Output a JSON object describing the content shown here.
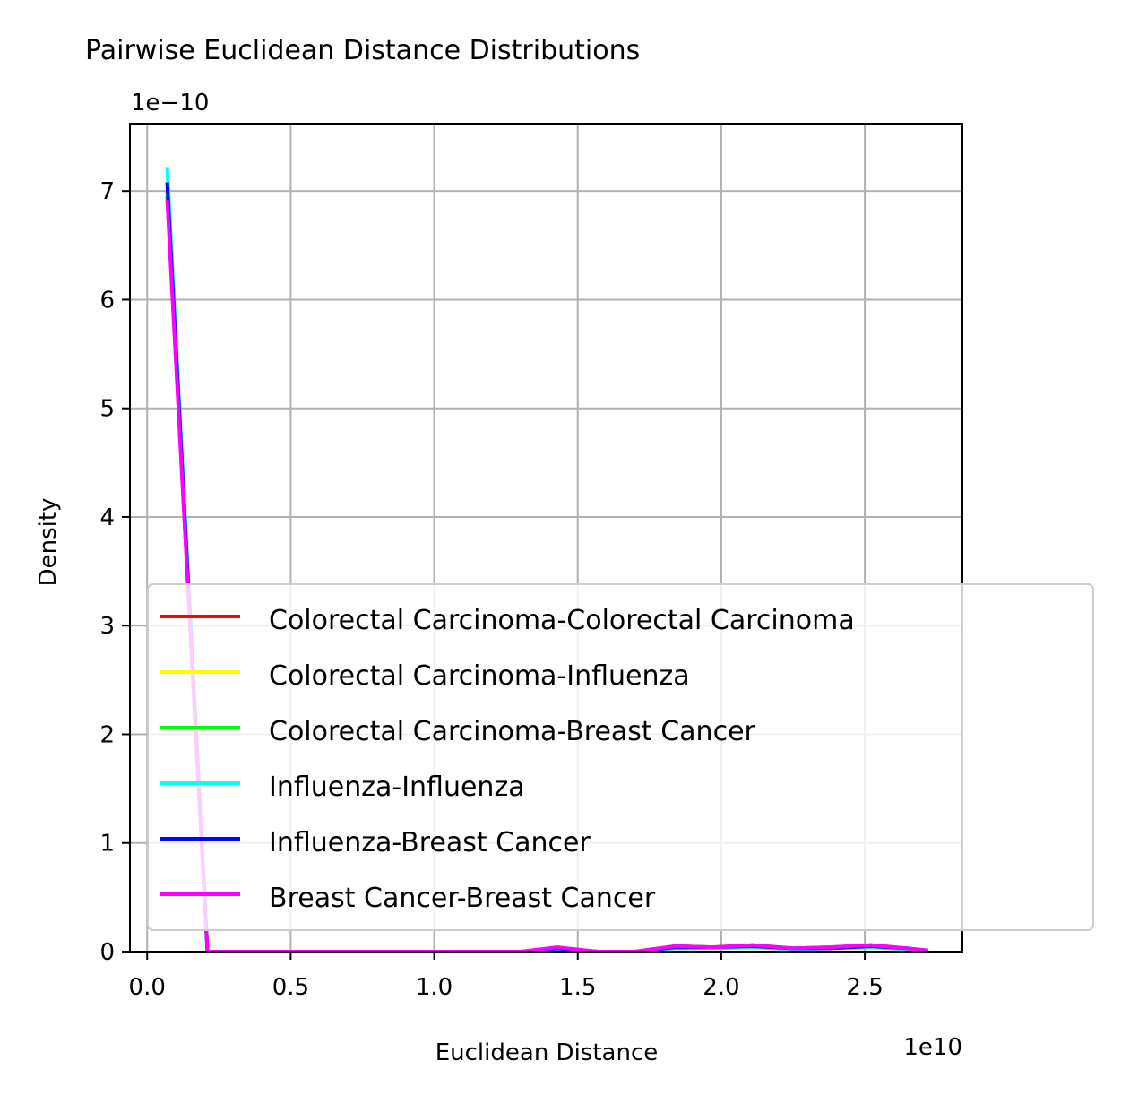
{
  "chart_data": {
    "type": "line",
    "title": "Pairwise Euclidean Distance Distributions",
    "xlabel": "Euclidean Distance",
    "ylabel": "Density",
    "x_offset_text": "1e10",
    "y_offset_text": "1e−10",
    "x_scale": 10000000000.0,
    "y_scale": 1e-10,
    "xlim": [
      -0.06,
      2.84
    ],
    "ylim": [
      0,
      7.62
    ],
    "x_ticks": [
      0.0,
      0.5,
      1.0,
      1.5,
      2.0,
      2.5
    ],
    "x_tick_labels": [
      "0.0",
      "0.5",
      "1.0",
      "1.5",
      "2.0",
      "2.5"
    ],
    "y_ticks": [
      0,
      1,
      2,
      3,
      4,
      5,
      6,
      7
    ],
    "y_tick_labels": [
      "0",
      "1",
      "2",
      "3",
      "4",
      "5",
      "6",
      "7"
    ],
    "grid": true,
    "legend_position": "lower-right (extends outside axes)",
    "series": [
      {
        "name": "Colorectal Carcinoma-Colorectal Carcinoma",
        "color": "#ff0000",
        "x": [
          0.07,
          0.21,
          0.35,
          0.48,
          0.62,
          0.75,
          0.89,
          1.02,
          1.16,
          1.3,
          1.43,
          1.57,
          1.7,
          1.84,
          1.97,
          2.11,
          2.25,
          2.38,
          2.52,
          2.65,
          2.72
        ],
        "y": [
          6.95,
          0.0,
          0.0,
          0.0,
          0.0,
          0.0,
          0.0,
          0.0,
          0.0,
          0.0,
          0.03,
          0.0,
          0.0,
          0.05,
          0.04,
          0.06,
          0.03,
          0.04,
          0.06,
          0.03,
          0.01
        ]
      },
      {
        "name": "Colorectal Carcinoma-Influenza",
        "color": "#ffff00",
        "x": [
          0.07,
          0.21,
          0.35,
          0.48,
          0.62,
          0.75,
          0.89,
          1.02,
          1.16,
          1.3,
          1.43,
          1.57,
          1.7,
          1.84,
          1.97,
          2.11,
          2.25,
          2.38,
          2.52,
          2.65,
          2.72
        ],
        "y": [
          7.05,
          0.0,
          0.0,
          0.0,
          0.0,
          0.0,
          0.0,
          0.0,
          0.0,
          0.0,
          0.03,
          0.0,
          0.0,
          0.04,
          0.04,
          0.05,
          0.03,
          0.03,
          0.05,
          0.03,
          0.01
        ]
      },
      {
        "name": "Colorectal Carcinoma-Breast Cancer",
        "color": "#00ff00",
        "x": [
          0.07,
          0.21,
          0.35,
          0.48,
          0.62,
          0.75,
          0.89,
          1.02,
          1.16,
          1.3,
          1.43,
          1.57,
          1.7,
          1.84,
          1.97,
          2.11,
          2.25,
          2.38,
          2.52,
          2.65,
          2.72
        ],
        "y": [
          7.0,
          0.0,
          0.0,
          0.0,
          0.0,
          0.0,
          0.0,
          0.0,
          0.0,
          0.0,
          0.03,
          0.0,
          0.0,
          0.05,
          0.04,
          0.05,
          0.03,
          0.04,
          0.05,
          0.03,
          0.01
        ]
      },
      {
        "name": "Influenza-Influenza",
        "color": "#00ffff",
        "x": [
          0.07,
          0.21,
          0.35,
          0.48,
          0.62,
          0.75,
          0.89,
          1.02,
          1.16,
          1.3,
          1.43,
          1.57,
          1.7,
          1.84,
          1.97,
          2.11,
          2.25,
          2.38,
          2.52,
          2.65,
          2.72
        ],
        "y": [
          7.22,
          0.0,
          0.0,
          0.0,
          0.0,
          0.0,
          0.0,
          0.0,
          0.0,
          0.0,
          0.02,
          0.0,
          0.0,
          0.03,
          0.03,
          0.04,
          0.02,
          0.03,
          0.04,
          0.02,
          0.01
        ]
      },
      {
        "name": "Influenza-Breast Cancer",
        "color": "#0000ff",
        "x": [
          0.07,
          0.21,
          0.35,
          0.48,
          0.62,
          0.75,
          0.89,
          1.02,
          1.16,
          1.3,
          1.43,
          1.57,
          1.7,
          1.84,
          1.97,
          2.11,
          2.25,
          2.38,
          2.52,
          2.65,
          2.72
        ],
        "y": [
          7.08,
          0.0,
          0.0,
          0.0,
          0.0,
          0.0,
          0.0,
          0.0,
          0.0,
          0.0,
          0.03,
          0.0,
          0.0,
          0.04,
          0.04,
          0.05,
          0.03,
          0.03,
          0.05,
          0.03,
          0.01
        ]
      },
      {
        "name": "Breast Cancer-Breast Cancer",
        "color": "#ff00ff",
        "x": [
          0.07,
          0.21,
          0.35,
          0.48,
          0.62,
          0.75,
          0.89,
          1.02,
          1.16,
          1.3,
          1.43,
          1.57,
          1.7,
          1.84,
          1.97,
          2.11,
          2.25,
          2.38,
          2.52,
          2.65,
          2.72
        ],
        "y": [
          6.92,
          0.0,
          0.0,
          0.0,
          0.0,
          0.0,
          0.0,
          0.0,
          0.0,
          0.0,
          0.04,
          0.0,
          0.0,
          0.05,
          0.04,
          0.06,
          0.03,
          0.04,
          0.06,
          0.03,
          0.01
        ]
      }
    ]
  }
}
